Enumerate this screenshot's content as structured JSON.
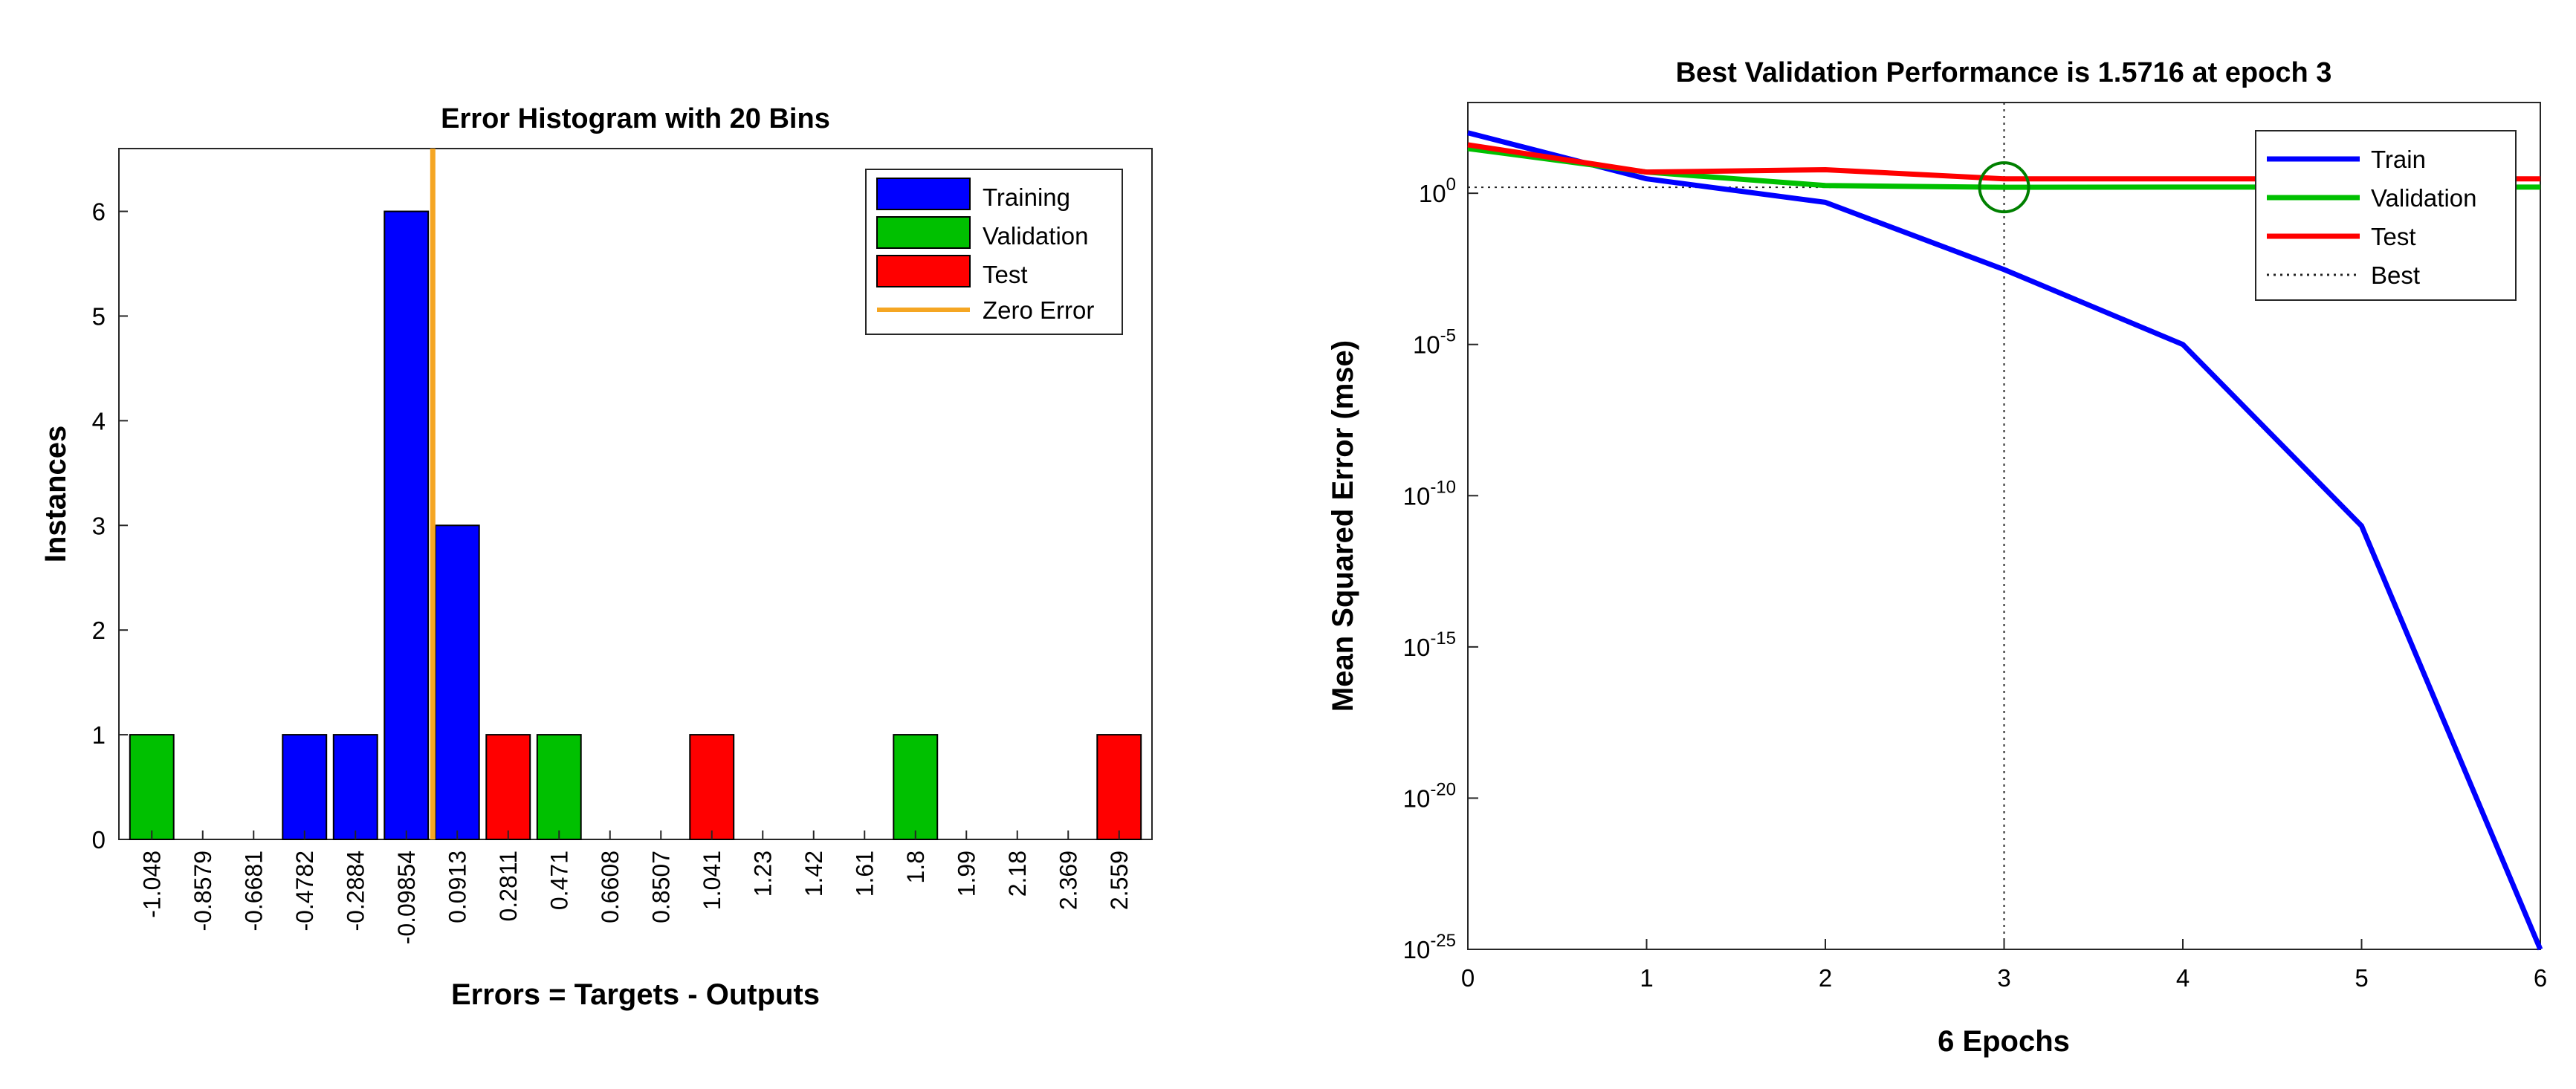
{
  "chart_data": [
    {
      "type": "bar",
      "title": "Error Histogram with 20 Bins",
      "xlabel": "Errors = Targets - Outputs",
      "ylabel": "Instances",
      "categories": [
        "-1.048",
        "-0.8579",
        "-0.6681",
        "-0.4782",
        "-0.2884",
        "-0.09854",
        "0.0913",
        "0.2811",
        "0.471",
        "0.6608",
        "0.8507",
        "1.041",
        "1.23",
        "1.42",
        "1.61",
        "1.8",
        "1.99",
        "2.18",
        "2.369",
        "2.559"
      ],
      "series": [
        {
          "name": "Training",
          "color": "#0000ff",
          "values": [
            0,
            0,
            0,
            1,
            1,
            6,
            3,
            0,
            0,
            0,
            0,
            0,
            0,
            0,
            0,
            0,
            0,
            0,
            0,
            0
          ]
        },
        {
          "name": "Validation",
          "color": "#00c000",
          "values": [
            1,
            0,
            0,
            0,
            0,
            0,
            0,
            0,
            1,
            0,
            0,
            0,
            0,
            0,
            0,
            1,
            0,
            0,
            0,
            0
          ]
        },
        {
          "name": "Test",
          "color": "#ff0000",
          "values": [
            0,
            0,
            0,
            0,
            0,
            0,
            0,
            1,
            0,
            0,
            0,
            1,
            0,
            0,
            0,
            0,
            0,
            0,
            0,
            1
          ]
        }
      ],
      "zero_error": {
        "name": "Zero Error",
        "color": "#f5a623",
        "x": 0
      },
      "yticks": [
        0,
        1,
        2,
        3,
        4,
        5,
        6
      ],
      "ylim": [
        0,
        6.6
      ],
      "legend_position": "top-right",
      "grid": false
    },
    {
      "type": "line",
      "title": "Best Validation Performance is 1.5716 at epoch 3",
      "xlabel": "6 Epochs",
      "ylabel": "Mean Squared Error  (mse)",
      "y_scale": "log",
      "x": [
        0,
        1,
        2,
        3,
        4,
        5,
        6
      ],
      "xticks": [
        "0",
        "1",
        "2",
        "3",
        "4",
        "5",
        "6"
      ],
      "xlim": [
        0,
        6
      ],
      "ylim": [
        1e-25,
        1000
      ],
      "yticks": [
        {
          "base": "10",
          "exp": "0",
          "value": 1
        },
        {
          "base": "10",
          "exp": "-5",
          "value": 1e-05
        },
        {
          "base": "10",
          "exp": "-10",
          "value": 1e-10
        },
        {
          "base": "10",
          "exp": "-15",
          "value": 1e-15
        },
        {
          "base": "10",
          "exp": "-20",
          "value": 1e-20
        },
        {
          "base": "10",
          "exp": "-25",
          "value": 1e-25
        }
      ],
      "series": [
        {
          "name": "Train",
          "color": "#0000ff",
          "values": [
            100,
            3,
            0.5,
            0.003,
            1e-05,
            1e-11,
            1e-25
          ]
        },
        {
          "name": "Validation",
          "color": "#00c000",
          "values": [
            30,
            5,
            1.8,
            1.5716,
            1.6,
            1.6,
            1.6
          ]
        },
        {
          "name": "Test",
          "color": "#ff0000",
          "values": [
            40,
            5,
            6,
            3,
            3,
            3,
            3
          ]
        }
      ],
      "best": {
        "name": "Best",
        "epoch": 3,
        "value": 1.5716,
        "color": "#008000"
      },
      "legend_position": "top-right",
      "grid": false
    }
  ]
}
